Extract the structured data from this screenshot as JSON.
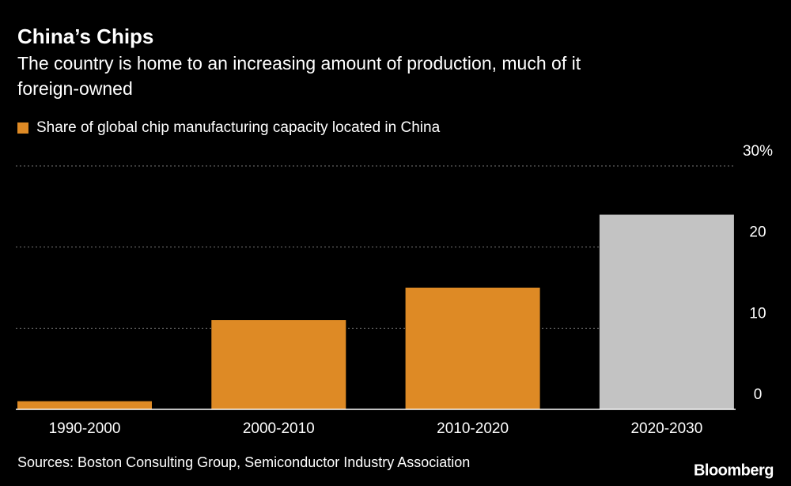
{
  "chart_data": {
    "type": "bar",
    "title": "China’s Chips",
    "subtitle": [
      "The country is home to an increasing amount of production, much of it",
      "foreign-owned"
    ],
    "categories": [
      "1990-2000",
      "2000-2010",
      "2010-2020",
      "2020-2030"
    ],
    "series": [
      {
        "name": "Share of global chip manufacturing capacity located in China",
        "color": "#de8a25",
        "colors": [
          "#de8a25",
          "#de8a25",
          "#de8a25",
          "#c3c3c3"
        ],
        "values": [
          1,
          11,
          15,
          24
        ]
      }
    ],
    "ylim": [
      0,
      30
    ],
    "yticks": [
      0,
      10,
      20,
      {
        "value": 30,
        "label": "30%"
      }
    ],
    "grid": true,
    "source": "Sources: Boston Consulting Group, Semiconductor Industry Association",
    "logo": "Bloomberg"
  }
}
